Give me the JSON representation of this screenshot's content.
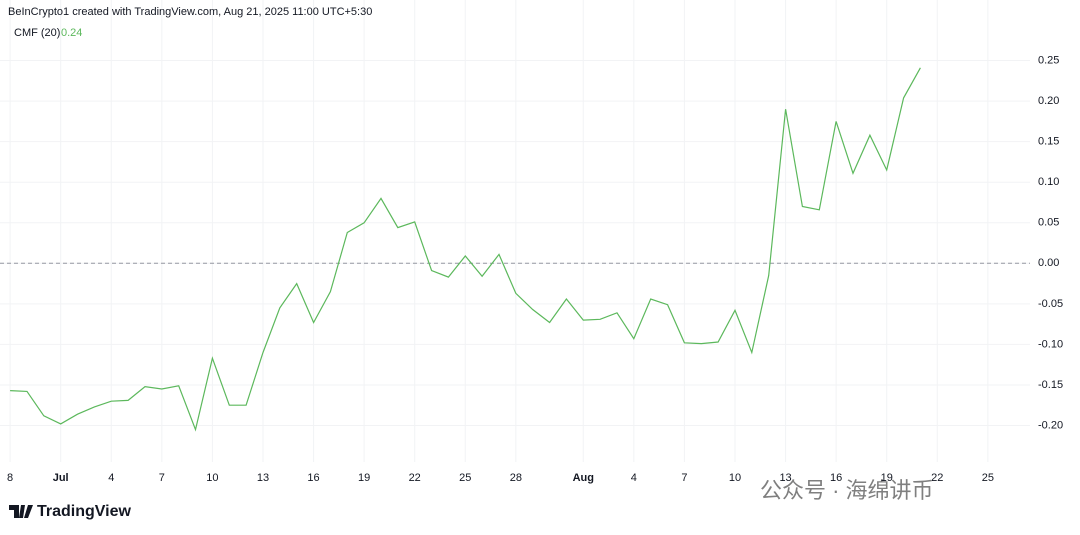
{
  "header": {
    "caption": "BeInCrypto1 created with TradingView.com, Aug 21, 2025 11:00 UTC+5:30",
    "indicator": "CMF (20)",
    "last_value": "0.24"
  },
  "logo": "TradingView",
  "watermark": "公众号 · 海绵讲币",
  "chart_data": {
    "type": "line",
    "x": [
      0,
      1,
      2,
      3,
      4,
      5,
      6,
      7,
      8,
      9,
      10,
      11,
      12,
      13,
      14,
      15,
      16,
      17,
      18,
      19,
      20,
      21,
      22,
      23,
      24,
      25,
      26,
      27,
      28,
      29,
      30,
      31,
      32,
      33,
      34,
      35,
      36,
      37,
      38,
      39,
      40,
      41,
      42,
      43,
      44,
      45,
      46,
      47,
      48,
      49,
      50,
      51,
      52,
      53,
      54
    ],
    "series": [
      {
        "name": "CMF (20)",
        "color": "#5cb85c",
        "values": [
          -0.157,
          -0.158,
          -0.188,
          -0.198,
          -0.186,
          -0.177,
          -0.17,
          -0.169,
          -0.152,
          -0.155,
          -0.151,
          -0.205,
          -0.117,
          -0.175,
          -0.175,
          -0.11,
          -0.055,
          -0.025,
          -0.073,
          -0.035,
          0.038,
          0.05,
          0.08,
          0.044,
          0.051,
          -0.009,
          -0.017,
          0.009,
          -0.016,
          0.011,
          -0.037,
          -0.057,
          -0.073,
          -0.044,
          -0.07,
          -0.069,
          -0.061,
          -0.093,
          -0.044,
          -0.051,
          -0.098,
          -0.099,
          -0.097,
          -0.058,
          -0.11,
          -0.015,
          0.19,
          0.07,
          0.066,
          0.175,
          0.111,
          0.158,
          0.115,
          0.204,
          0.241
        ]
      }
    ],
    "xlim": [
      -0.6,
      60.5
    ],
    "xticks": [
      {
        "value": 0,
        "label": "8"
      },
      {
        "value": 3,
        "label": "Jul"
      },
      {
        "value": 6,
        "label": "4"
      },
      {
        "value": 9,
        "label": "7"
      },
      {
        "value": 12,
        "label": "10"
      },
      {
        "value": 15,
        "label": "13"
      },
      {
        "value": 18,
        "label": "16"
      },
      {
        "value": 21,
        "label": "19"
      },
      {
        "value": 24,
        "label": "22"
      },
      {
        "value": 27,
        "label": "25"
      },
      {
        "value": 30,
        "label": "28"
      },
      {
        "value": 34,
        "label": "Aug"
      },
      {
        "value": 37,
        "label": "4"
      },
      {
        "value": 40,
        "label": "7"
      },
      {
        "value": 43,
        "label": "10"
      },
      {
        "value": 46,
        "label": "13"
      },
      {
        "value": 49,
        "label": "16"
      },
      {
        "value": 52,
        "label": "19"
      },
      {
        "value": 55,
        "label": "22"
      },
      {
        "value": 58,
        "label": "25"
      }
    ],
    "ylim": [
      -0.245,
      0.3
    ],
    "yticks": [
      0.25,
      {
        "value": 0.2,
        "label": "0.20"
      },
      0.15,
      {
        "value": 0.1,
        "label": "0.10"
      },
      0.05,
      {
        "value": 0,
        "label": "0.00"
      },
      -0.05,
      {
        "value": -0.1,
        "label": "-0.10"
      },
      -0.15,
      {
        "value": -0.2,
        "label": "-0.20"
      }
    ],
    "zero_line": 0,
    "grid": true
  }
}
